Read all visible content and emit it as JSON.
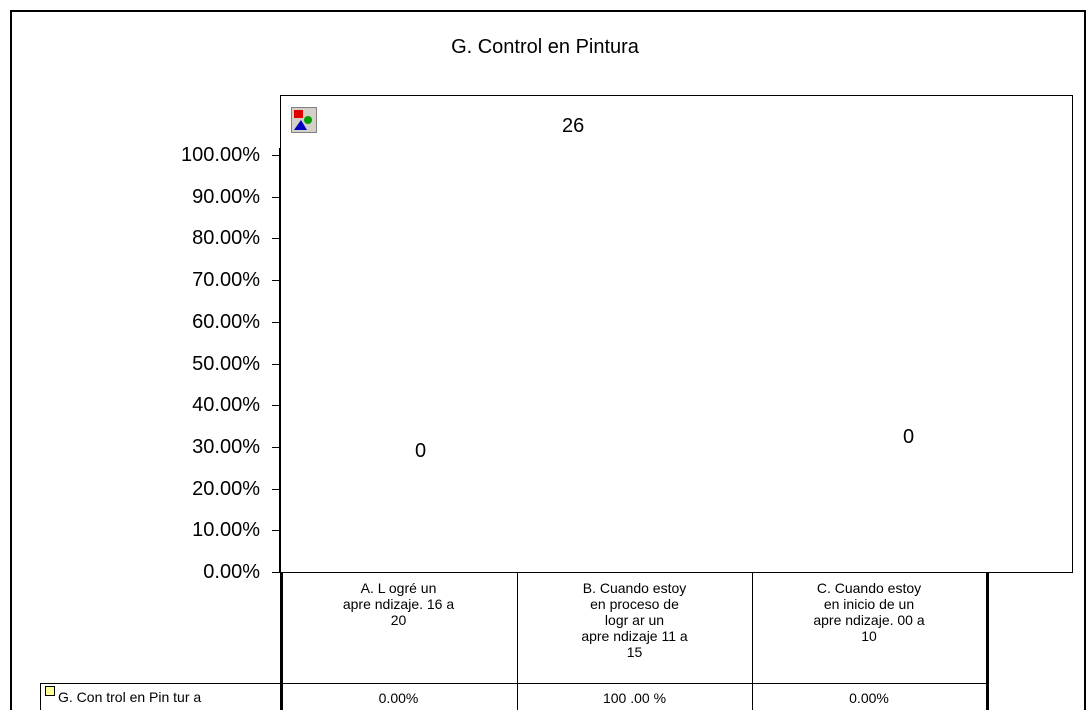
{
  "chart_data": {
    "type": "bar",
    "title": "G. Control en Pintura",
    "categories": [
      "A. L ogré un apre ndizaje. 16 a 20",
      "B. Cuando estoy en proceso de logr ar un apre ndizaje 11 a 15",
      "C. Cuando estoy en inicio de un apre ndizaje. 00 a 10"
    ],
    "category_lines": [
      [
        "A. L ogré un",
        "apre ndizaje. 16 a",
        "20"
      ],
      [
        "B. Cuando estoy",
        "en proceso de",
        "logr ar un",
        "apre ndizaje 11 a",
        "15"
      ],
      [
        "C. Cuando estoy",
        "en inicio de un",
        "apre ndizaje. 00 a",
        "10"
      ]
    ],
    "series": [
      {
        "name": "G. Con trol en Pin tur a",
        "values": [
          0,
          100,
          0
        ],
        "value_labels": [
          "0.00%",
          "100 .00 %",
          "0.00%"
        ]
      }
    ],
    "data_labels": [
      "0",
      "26",
      "0"
    ],
    "yticks": [
      "0.00%",
      "10.00%",
      "20.00%",
      "30.00%",
      "40.00%",
      "50.00%",
      "60.00%",
      "70.00%",
      "80.00%",
      "90.00%",
      "100.00%"
    ],
    "ylim": [
      0,
      100
    ],
    "grid": false,
    "legend": "data-table-row",
    "colors": {
      "series_key": "#ffff99",
      "plot_bg": "#ffffff",
      "axis": "#000000"
    }
  },
  "icons": {
    "plot_icon": "chart-object-icon"
  }
}
